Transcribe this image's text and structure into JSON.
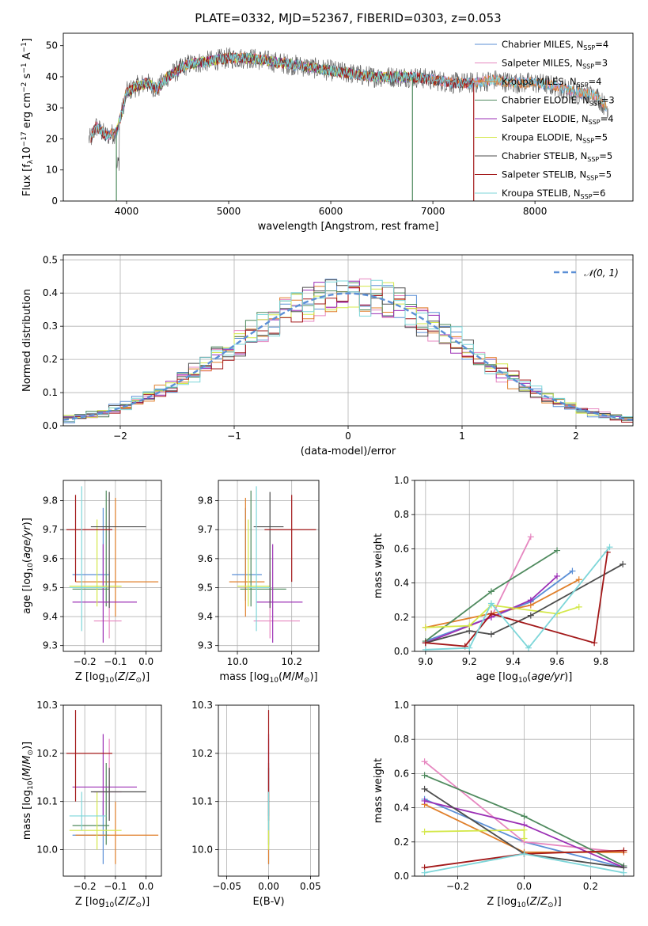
{
  "figure": {
    "title": "PLATE=0332, MJD=52367, FIBERID=0303, z=0.053"
  },
  "colors": {
    "models": [
      "#5b8fd6",
      "#e687c0",
      "#e07f2a",
      "#4f8a5e",
      "#9b2fb5",
      "#d4e84a",
      "#4d4d4d",
      "#a3191a",
      "#7dd6d9"
    ],
    "data": "#555555",
    "normal": "#5b8fd6",
    "grid": "#b0b0b0"
  },
  "chart_data": [
    {
      "id": "spectrum",
      "type": "line",
      "title": "PLATE=0332, MJD=52367, FIBERID=0303, z=0.053",
      "xlabel": "wavelength [Angstrom, rest frame]",
      "ylabel": "Flux [f_λ 10^-17 erg cm^-2 s^-1 A^-1]",
      "xlim": [
        3380,
        8960
      ],
      "ylim": [
        0,
        54
      ],
      "xticks": [
        4000,
        5000,
        6000,
        7000,
        8000
      ],
      "yticks": [
        0,
        10,
        20,
        30,
        40,
        50
      ],
      "grid": false,
      "legend_position": "top-right",
      "legend": [
        "Chabrier MILES, N_SSP=4",
        "Salpeter MILES, N_SSP=3",
        "Kroupa MILES, N_SSP=4",
        "Chabrier ELODIE, N_SSP=3",
        "Salpeter ELODIE, N_SSP=4",
        "Kroupa ELODIE, N_SSP=5",
        "Chabrier STELIB, N_SSP=5",
        "Salpeter STELIB, N_SSP=5",
        "Kroupa STELIB, N_SSP=6"
      ],
      "continuum": {
        "x": [
          3650,
          3700,
          3800,
          3900,
          3950,
          4000,
          4100,
          4200,
          4300,
          4400,
          4500,
          4600,
          4800,
          5000,
          5200,
          5400,
          5600,
          5800,
          6000,
          6200,
          6400,
          6600,
          6800,
          7000,
          7200,
          7400,
          7600,
          7800,
          8000,
          8200,
          8400,
          8600,
          8700
        ],
        "y": [
          20,
          24,
          21,
          22,
          28,
          35,
          37,
          38,
          36,
          40,
          42,
          44,
          45,
          46,
          46,
          45,
          44,
          43,
          42,
          41,
          40,
          40,
          40,
          39,
          38,
          38,
          39,
          38,
          38,
          37,
          35,
          34,
          30
        ]
      },
      "model_ranges": [
        [
          3650,
          8700
        ],
        [
          3650,
          8700
        ],
        [
          3650,
          8700
        ],
        [
          3900,
          6800
        ],
        [
          3900,
          6800
        ],
        [
          3900,
          6800
        ],
        [
          3650,
          7400
        ],
        [
          3650,
          7400
        ],
        [
          3650,
          8700
        ]
      ],
      "drop_lines": [
        3900,
        6800,
        7400
      ]
    },
    {
      "id": "residuals",
      "type": "histogram",
      "xlabel": "(data-model)/error",
      "ylabel": "Normed distribution",
      "xlim": [
        -2.5,
        2.5
      ],
      "ylim": [
        0,
        0.515
      ],
      "xticks": [
        -2,
        -1,
        0,
        1,
        2
      ],
      "xtick_labels": [
        "−2",
        "−1",
        "0",
        "1",
        "2"
      ],
      "yticks": [
        0.0,
        0.1,
        0.2,
        0.3,
        0.4,
        0.5
      ],
      "grid": true,
      "legend_position": "top-right",
      "legend": [
        "𝒩(0, 1)"
      ],
      "bin_width": 0.1
    },
    {
      "id": "age-vs-Z",
      "type": "errorbar",
      "xlabel": "Z [log10(Z/Z⊙)]",
      "ylabel": "age [log10(age/yr)]",
      "xlim": [
        -0.27,
        0.05
      ],
      "ylim": [
        9.28,
        9.87
      ],
      "xticks": [
        -0.2,
        -0.1,
        0.0
      ],
      "yticks": [
        9.3,
        9.4,
        9.5,
        9.6,
        9.7,
        9.8
      ],
      "grid": true,
      "points": [
        {
          "x": -0.14,
          "xerr": [
            0.1,
            0.02
          ],
          "y": 9.545,
          "yerr": [
            0.09,
            0.23
          ]
        },
        {
          "x": -0.12,
          "xerr": [
            0.05,
            0.04
          ],
          "y": 9.385,
          "yerr": [
            0.06,
            0.17
          ]
        },
        {
          "x": -0.1,
          "xerr": [
            0.13,
            0.14
          ],
          "y": 9.52,
          "yerr": [
            0.12,
            0.29
          ]
        },
        {
          "x": -0.13,
          "xerr": [
            0.11,
            0.01
          ],
          "y": 9.495,
          "yerr": [
            0.06,
            0.34
          ]
        },
        {
          "x": -0.14,
          "xerr": [
            0.1,
            0.11
          ],
          "y": 9.45,
          "yerr": [
            0.14,
            0.2
          ]
        },
        {
          "x": -0.16,
          "xerr": [
            0.09,
            0.08
          ],
          "y": 9.505,
          "yerr": [
            0.07,
            0.23
          ]
        },
        {
          "x": -0.12,
          "xerr": [
            0.06,
            0.12
          ],
          "y": 9.71,
          "yerr": [
            0.28,
            0.12
          ]
        },
        {
          "x": -0.23,
          "xerr": [
            0.03,
            0.12
          ],
          "y": 9.7,
          "yerr": [
            0.18,
            0.12
          ]
        },
        {
          "x": -0.21,
          "xerr": [
            0.04,
            0.08
          ],
          "y": 9.5,
          "yerr": [
            0.15,
            0.35
          ]
        }
      ]
    },
    {
      "id": "age-vs-mass",
      "type": "errorbar",
      "xlabel": "mass [log10(M/M⊙)]",
      "ylabel": "",
      "xlim": [
        9.93,
        10.3
      ],
      "ylim": [
        9.28,
        9.87
      ],
      "xticks": [
        10.0,
        10.2
      ],
      "yticks": [
        9.3,
        9.4,
        9.5,
        9.6,
        9.7,
        9.8
      ],
      "grid": true,
      "points": [
        {
          "x": 10.03,
          "xerr": [
            0.05,
            0.06
          ],
          "y": 9.545,
          "yerr": [
            0.09,
            0.23
          ]
        },
        {
          "x": 10.12,
          "xerr": [
            0.06,
            0.11
          ],
          "y": 9.385,
          "yerr": [
            0.06,
            0.17
          ]
        },
        {
          "x": 10.03,
          "xerr": [
            0.06,
            0.07
          ],
          "y": 9.52,
          "yerr": [
            0.12,
            0.29
          ]
        },
        {
          "x": 10.05,
          "xerr": [
            0.04,
            0.13
          ],
          "y": 9.495,
          "yerr": [
            0.06,
            0.34
          ]
        },
        {
          "x": 10.13,
          "xerr": [
            0.06,
            0.11
          ],
          "y": 9.45,
          "yerr": [
            0.14,
            0.2
          ]
        },
        {
          "x": 10.04,
          "xerr": [
            0.04,
            0.08
          ],
          "y": 9.505,
          "yerr": [
            0.07,
            0.23
          ]
        },
        {
          "x": 10.12,
          "xerr": [
            0.06,
            0.05
          ],
          "y": 9.71,
          "yerr": [
            0.28,
            0.12
          ]
        },
        {
          "x": 10.2,
          "xerr": [
            0.1,
            0.09
          ],
          "y": 9.7,
          "yerr": [
            0.18,
            0.12
          ]
        },
        {
          "x": 10.07,
          "xerr": [
            0.03,
            0.05
          ],
          "y": 9.5,
          "yerr": [
            0.15,
            0.35
          ]
        }
      ]
    },
    {
      "id": "weight-vs-age",
      "type": "line",
      "xlabel": "age [log10(age/yr)]",
      "ylabel": "mass weight",
      "xlim": [
        8.95,
        9.95
      ],
      "ylim": [
        0,
        1
      ],
      "xticks": [
        9.0,
        9.2,
        9.4,
        9.6,
        9.8
      ],
      "yticks": [
        0.0,
        0.2,
        0.4,
        0.6,
        0.8,
        1.0
      ],
      "grid": true,
      "series": [
        {
          "x": [
            9.0,
            9.3,
            9.48,
            9.67
          ],
          "y": [
            0.06,
            0.2,
            0.29,
            0.47
          ]
        },
        {
          "x": [
            9.0,
            9.3,
            9.48
          ],
          "y": [
            0.05,
            0.2,
            0.67
          ]
        },
        {
          "x": [
            9.0,
            9.48,
            9.7
          ],
          "y": [
            0.14,
            0.27,
            0.42
          ]
        },
        {
          "x": [
            9.0,
            9.3,
            9.6
          ],
          "y": [
            0.06,
            0.35,
            0.59
          ]
        },
        {
          "x": [
            9.0,
            9.3,
            9.48,
            9.6
          ],
          "y": [
            0.05,
            0.2,
            0.3,
            0.44
          ]
        },
        {
          "x": [
            9.0,
            9.2,
            9.3,
            9.6,
            9.7
          ],
          "y": [
            0.14,
            0.15,
            0.27,
            0.22,
            0.26
          ]
        },
        {
          "x": [
            9.0,
            9.2,
            9.3,
            9.48,
            9.9
          ],
          "y": [
            0.05,
            0.12,
            0.1,
            0.21,
            0.51
          ]
        },
        {
          "x": [
            9.0,
            9.18,
            9.3,
            9.77,
            9.83
          ],
          "y": [
            0.05,
            0.03,
            0.22,
            0.05,
            0.58
          ]
        },
        {
          "x": [
            9.0,
            9.2,
            9.3,
            9.47,
            9.84
          ],
          "y": [
            0.01,
            0.02,
            0.28,
            0.02,
            0.61
          ]
        }
      ]
    },
    {
      "id": "mass-vs-Z",
      "type": "errorbar",
      "xlabel": "Z [log10(Z/Z⊙)]",
      "ylabel": "mass [log10(M/M⊙)]",
      "xlim": [
        -0.27,
        0.05
      ],
      "ylim": [
        9.945,
        10.3
      ],
      "xticks": [
        -0.2,
        -0.1,
        0.0
      ],
      "yticks": [
        10.0,
        10.1,
        10.2,
        10.3
      ],
      "grid": true,
      "points": [
        {
          "x": -0.14,
          "xerr": [
            0.1,
            0.02
          ],
          "y": 10.03,
          "yerr": [
            0.06,
            0.07
          ]
        },
        {
          "x": -0.12,
          "xerr": [
            0.05,
            0.04
          ],
          "y": 10.12,
          "yerr": [
            0.06,
            0.11
          ]
        },
        {
          "x": -0.1,
          "xerr": [
            0.13,
            0.14
          ],
          "y": 10.03,
          "yerr": [
            0.06,
            0.07
          ]
        },
        {
          "x": -0.13,
          "xerr": [
            0.11,
            0.01
          ],
          "y": 10.05,
          "yerr": [
            0.04,
            0.13
          ]
        },
        {
          "x": -0.14,
          "xerr": [
            0.1,
            0.11
          ],
          "y": 10.13,
          "yerr": [
            0.06,
            0.11
          ]
        },
        {
          "x": -0.16,
          "xerr": [
            0.09,
            0.08
          ],
          "y": 10.04,
          "yerr": [
            0.04,
            0.08
          ]
        },
        {
          "x": -0.12,
          "xerr": [
            0.06,
            0.12
          ],
          "y": 10.12,
          "yerr": [
            0.06,
            0.05
          ]
        },
        {
          "x": -0.23,
          "xerr": [
            0.03,
            0.12
          ],
          "y": 10.2,
          "yerr": [
            0.1,
            0.09
          ]
        },
        {
          "x": -0.21,
          "xerr": [
            0.04,
            0.08
          ],
          "y": 10.07,
          "yerr": [
            0.03,
            0.05
          ]
        }
      ]
    },
    {
      "id": "mass-vs-ebv",
      "type": "errorbar",
      "xlabel": "E(B-V)",
      "ylabel": "",
      "xlim": [
        -0.06,
        0.06
      ],
      "ylim": [
        9.945,
        10.3
      ],
      "xticks": [
        -0.05,
        0.0,
        0.05
      ],
      "xtick_labels": [
        "−0.05",
        "0.00",
        "0.05"
      ],
      "yticks": [
        10.0,
        10.1,
        10.2,
        10.3
      ],
      "grid": true,
      "points": [
        {
          "x": 0,
          "xerr": [
            0,
            0
          ],
          "y": 10.03,
          "yerr": [
            0.06,
            0.07
          ]
        },
        {
          "x": 0,
          "xerr": [
            0,
            0
          ],
          "y": 10.12,
          "yerr": [
            0.06,
            0.11
          ]
        },
        {
          "x": 0,
          "xerr": [
            0,
            0
          ],
          "y": 10.03,
          "yerr": [
            0.06,
            0.07
          ]
        },
        {
          "x": 0,
          "xerr": [
            0,
            0
          ],
          "y": 10.05,
          "yerr": [
            0.04,
            0.13
          ]
        },
        {
          "x": 0,
          "xerr": [
            0,
            0
          ],
          "y": 10.13,
          "yerr": [
            0.06,
            0.11
          ]
        },
        {
          "x": 0,
          "xerr": [
            0,
            0
          ],
          "y": 10.04,
          "yerr": [
            0.04,
            0.08
          ]
        },
        {
          "x": 0,
          "xerr": [
            0,
            0
          ],
          "y": 10.12,
          "yerr": [
            0.06,
            0.05
          ]
        },
        {
          "x": 0,
          "xerr": [
            0,
            0
          ],
          "y": 10.2,
          "yerr": [
            0.1,
            0.09
          ]
        },
        {
          "x": 0,
          "xerr": [
            0,
            0
          ],
          "y": 10.07,
          "yerr": [
            0.03,
            0.05
          ]
        }
      ]
    },
    {
      "id": "weight-vs-Z",
      "type": "line",
      "xlabel": "Z [log10(Z/Z⊙)]",
      "ylabel": "mass weight",
      "xlim": [
        -0.33,
        0.33
      ],
      "ylim": [
        0,
        1
      ],
      "xticks": [
        -0.2,
        0.0,
        0.2
      ],
      "xtick_labels": [
        "−0.2",
        "0.0",
        "0.2"
      ],
      "yticks": [
        0.0,
        0.2,
        0.4,
        0.6,
        0.8,
        1.0
      ],
      "grid": true,
      "series": [
        {
          "x": [
            -0.3,
            0.0,
            0.3
          ],
          "y": [
            0.45,
            0.2,
            0.05
          ]
        },
        {
          "x": [
            -0.3,
            0.0,
            0.3
          ],
          "y": [
            0.67,
            0.2,
            0.14
          ]
        },
        {
          "x": [
            -0.3,
            0.0,
            0.3
          ],
          "y": [
            0.42,
            0.14,
            0.14
          ]
        },
        {
          "x": [
            -0.3,
            0.0,
            0.3
          ],
          "y": [
            0.59,
            0.35,
            0.06
          ]
        },
        {
          "x": [
            -0.3,
            0.0,
            0.3
          ],
          "y": [
            0.44,
            0.3,
            0.05
          ]
        },
        {
          "x": [
            -0.3,
            0.0,
            0.0
          ],
          "y": [
            0.26,
            0.27,
            0.22
          ]
        },
        {
          "x": [
            -0.3,
            0.0,
            0.3
          ],
          "y": [
            0.51,
            0.13,
            0.05
          ]
        },
        {
          "x": [
            -0.3,
            0.0,
            0.3
          ],
          "y": [
            0.05,
            0.13,
            0.15
          ]
        },
        {
          "x": [
            -0.3,
            0.0,
            0.3
          ],
          "y": [
            0.02,
            0.13,
            0.02
          ]
        }
      ]
    }
  ]
}
